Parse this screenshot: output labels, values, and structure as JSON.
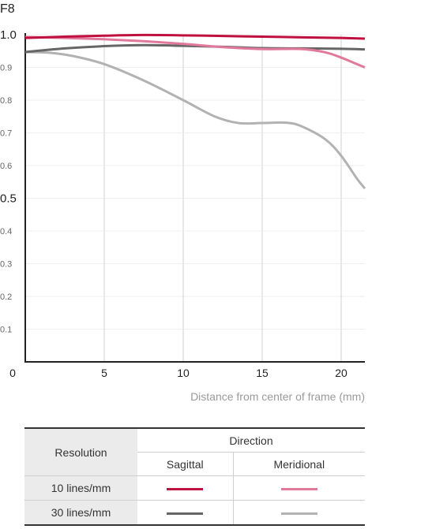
{
  "chart_data": {
    "type": "line",
    "title": "F8",
    "xlabel": "Distance from center of frame (mm)",
    "ylabel": "",
    "xlim": [
      0,
      21.5
    ],
    "ylim": [
      0,
      1.0
    ],
    "x_ticks": [
      {
        "value": 0,
        "label": "0"
      },
      {
        "value": 5,
        "label": "5"
      },
      {
        "value": 10,
        "label": "10"
      },
      {
        "value": 15,
        "label": "15"
      },
      {
        "value": 20,
        "label": "20"
      }
    ],
    "y_ticks": [
      {
        "value": 0.1,
        "label": "0.1"
      },
      {
        "value": 0.2,
        "label": "0.2"
      },
      {
        "value": 0.3,
        "label": "0.3"
      },
      {
        "value": 0.4,
        "label": "0.4"
      },
      {
        "value": 0.5,
        "label": "0.5"
      },
      {
        "value": 0.6,
        "label": "0.6"
      },
      {
        "value": 0.7,
        "label": "0.7"
      },
      {
        "value": 0.8,
        "label": "0.8"
      },
      {
        "value": 0.9,
        "label": "0.9"
      },
      {
        "value": 1.0,
        "label": "1.0"
      }
    ],
    "grid": true,
    "series": [
      {
        "key": "s10",
        "color": "#c0103f",
        "x": [
          0,
          2.5,
          5,
          7.5,
          10,
          12.5,
          15,
          17.5,
          20,
          21.5
        ],
        "y": [
          0.99,
          0.994,
          0.997,
          0.999,
          0.998,
          0.996,
          0.994,
          0.992,
          0.99,
          0.988
        ]
      },
      {
        "key": "m10",
        "color": "#e0799a",
        "x": [
          0,
          2.5,
          5,
          7.5,
          10,
          12.5,
          15,
          17.5,
          19,
          20,
          21,
          21.5
        ],
        "y": [
          0.993,
          0.99,
          0.986,
          0.98,
          0.972,
          0.962,
          0.956,
          0.956,
          0.946,
          0.93,
          0.91,
          0.9
        ]
      },
      {
        "key": "s30",
        "color": "#666666",
        "x": [
          0,
          2.5,
          5,
          7.5,
          10,
          12.5,
          15,
          17.5,
          20,
          21.5
        ],
        "y": [
          0.947,
          0.958,
          0.965,
          0.968,
          0.966,
          0.963,
          0.959,
          0.958,
          0.957,
          0.955
        ]
      },
      {
        "key": "m30",
        "color": "#b2b2b2",
        "x": [
          0,
          1.5,
          3,
          5,
          7.5,
          10,
          12,
          13.5,
          15,
          16.5,
          17.5,
          19,
          20,
          21,
          21.5
        ],
        "y": [
          0.947,
          0.945,
          0.935,
          0.91,
          0.86,
          0.8,
          0.75,
          0.73,
          0.73,
          0.731,
          0.72,
          0.68,
          0.63,
          0.56,
          0.53
        ]
      }
    ]
  },
  "legend_table": {
    "resolution_header": "Resolution",
    "direction_header": "Direction",
    "sagittal_header": "Sagittal",
    "meridional_header": "Meridional",
    "rows": [
      {
        "label": "10 lines/mm",
        "sagittal_color": "#c0103f",
        "meridional_color": "#e0799a"
      },
      {
        "label": "30 lines/mm",
        "sagittal_color": "#666666",
        "meridional_color": "#b2b2b2"
      }
    ]
  }
}
